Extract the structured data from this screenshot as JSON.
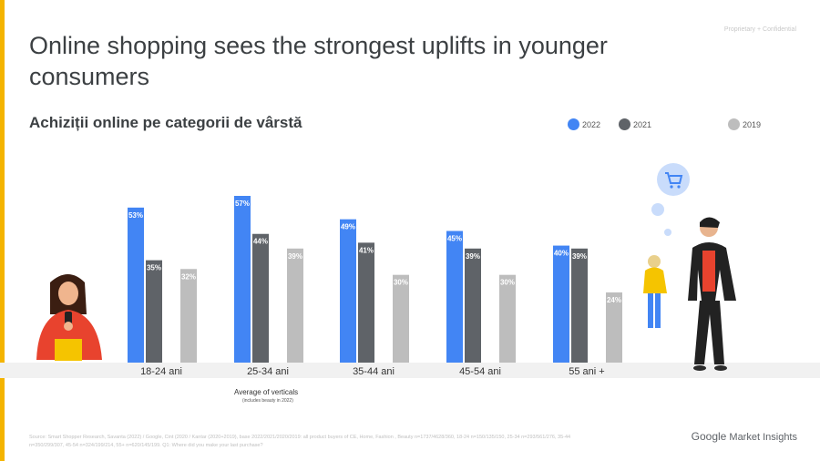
{
  "header": {
    "confidential": "Proprietary + Confidential",
    "headline": "Online shopping sees the strongest uplifts in younger consumers",
    "subtitle": "Achiziții online pe categorii de vârstă"
  },
  "chart_data": {
    "type": "bar",
    "title": "Achiziții online pe categorii de vârstă",
    "categories": [
      "18-24 ani",
      "25-34 ani",
      "35-44 ani",
      "45-54 ani",
      "55 ani +"
    ],
    "series": [
      {
        "name": "2022",
        "color": "#4285f4",
        "values": [
          53,
          57,
          49,
          45,
          40
        ]
      },
      {
        "name": "2021",
        "color": "#5f6368",
        "values": [
          35,
          44,
          41,
          39,
          39
        ]
      },
      {
        "name": "2019",
        "color": "#bdbdbd",
        "values": [
          32,
          39,
          30,
          30,
          24
        ]
      }
    ],
    "value_suffix": "%",
    "ylim": [
      0,
      60
    ],
    "legend_position": "top-right",
    "grid": false
  },
  "notes": {
    "avg_title": "Average of verticals",
    "avg_note": "(includes beauty in 2022)",
    "source": "Source: Smart Shopper Research, Savanta (2022) / Google, Cint (2020 / Kantar (2020+2019), base 2022/2021/2020/2019: all product buyers of CE, Home, Fashion , Beauty n=1737/4628/360, 18-24 n=150/135/150, 25-34 n=293/561/276, 35-44 n=350/299/307, 45-54 n=324/199/214, 55+ n=620/145/199. Q1: Where did you make your last purchase?"
  },
  "brand": {
    "google": "Google",
    "market_insights": "Market Insights"
  }
}
